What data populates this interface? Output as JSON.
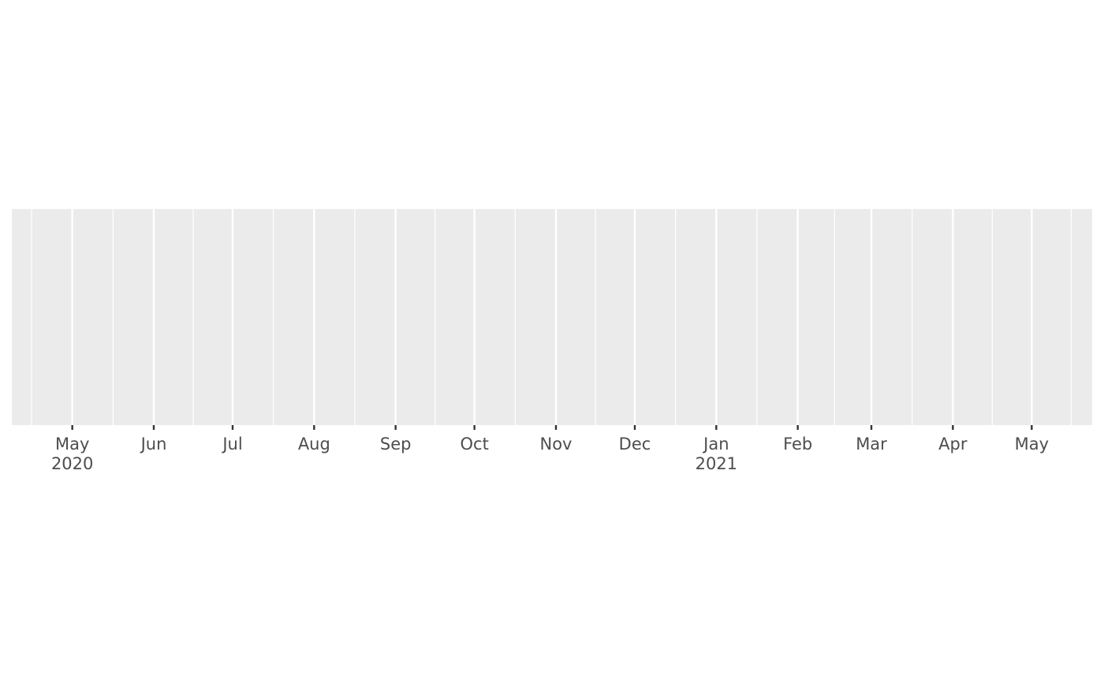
{
  "chart_data": {
    "type": "scatter",
    "title": "",
    "xlabel": "",
    "ylabel": "",
    "x_axis": {
      "scale": "date",
      "range": [
        "2020-04-08",
        "2021-05-24"
      ],
      "major_breaks": [
        {
          "date": "2020-05-01",
          "label": "May",
          "sublabel": "2020"
        },
        {
          "date": "2020-06-01",
          "label": "Jun",
          "sublabel": ""
        },
        {
          "date": "2020-07-01",
          "label": "Jul",
          "sublabel": ""
        },
        {
          "date": "2020-08-01",
          "label": "Aug",
          "sublabel": ""
        },
        {
          "date": "2020-09-01",
          "label": "Sep",
          "sublabel": ""
        },
        {
          "date": "2020-10-01",
          "label": "Oct",
          "sublabel": ""
        },
        {
          "date": "2020-11-01",
          "label": "Nov",
          "sublabel": ""
        },
        {
          "date": "2020-12-01",
          "label": "Dec",
          "sublabel": ""
        },
        {
          "date": "2021-01-01",
          "label": "Jan",
          "sublabel": "2021"
        },
        {
          "date": "2021-02-01",
          "label": "Feb",
          "sublabel": ""
        },
        {
          "date": "2021-03-01",
          "label": "Mar",
          "sublabel": ""
        },
        {
          "date": "2021-04-01",
          "label": "Apr",
          "sublabel": ""
        },
        {
          "date": "2021-05-01",
          "label": "May",
          "sublabel": ""
        }
      ],
      "minor_gridlines": true
    },
    "y_axis": {
      "visible": false
    },
    "series": [],
    "grid": true,
    "legend": "none",
    "colors": {
      "panel_background": "#ebebeb",
      "gridline": "#ffffff",
      "tick": "#333333",
      "tick_label": "#4d4d4d"
    }
  }
}
